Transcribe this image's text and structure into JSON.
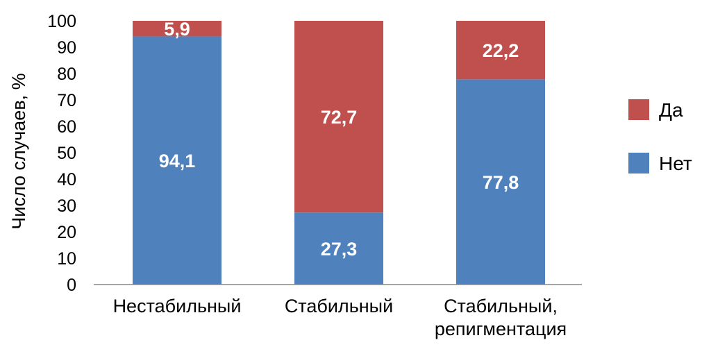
{
  "chart_data": {
    "type": "bar",
    "stacked": true,
    "categories": [
      [
        "Нестабильный"
      ],
      [
        "Стабильный"
      ],
      [
        "Стабильный,",
        "репигментация"
      ]
    ],
    "series": [
      {
        "name": "Нет",
        "color": "#4F81BD",
        "values": [
          94.1,
          27.3,
          77.8
        ],
        "labels": [
          "94,1",
          "27,3",
          "77,8"
        ]
      },
      {
        "name": "Да",
        "color": "#C0504D",
        "values": [
          5.9,
          72.7,
          22.2
        ],
        "labels": [
          "5,9",
          "72,7",
          "22,2"
        ]
      }
    ],
    "ylabel": "Число случаев, %",
    "ylim": [
      0,
      100
    ],
    "yticks": [
      0,
      10,
      20,
      30,
      40,
      50,
      60,
      70,
      80,
      90,
      100
    ],
    "grid": false,
    "legend": {
      "position": "right",
      "order": [
        "Да",
        "Нет"
      ]
    }
  }
}
